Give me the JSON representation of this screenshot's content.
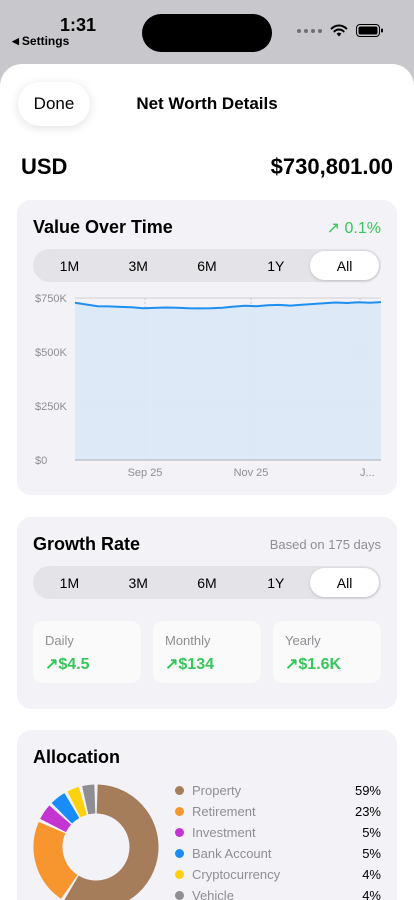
{
  "status_bar": {
    "time": "1:31",
    "back_app": "Settings"
  },
  "header": {
    "done_label": "Done",
    "title": "Net Worth Details"
  },
  "summary": {
    "currency": "USD",
    "total": "$730,801.00"
  },
  "value_over_time": {
    "title": "Value Over Time",
    "change": "0.1%",
    "ranges": [
      "1M",
      "3M",
      "6M",
      "1Y",
      "All"
    ],
    "selected_range": "All"
  },
  "chart_data": {
    "type": "area",
    "ytick_labels": [
      "$750K",
      "$500K",
      "$250K",
      "$0"
    ],
    "yticks": [
      750000,
      500000,
      250000,
      0
    ],
    "ylim": [
      0,
      750000
    ],
    "xtick_labels": [
      "Sep 25",
      "Nov 25",
      "J..."
    ],
    "grid": true,
    "line_color": "#1e8ff0",
    "fill_color": "#dbe8f6",
    "values": [
      728000,
      720000,
      712000,
      711000,
      709000,
      707000,
      703000,
      704000,
      706000,
      705000,
      703000,
      702000,
      703000,
      705000,
      710000,
      714000,
      712000,
      716000,
      718000,
      715000,
      719000,
      722000,
      726000,
      729000,
      727000,
      730000,
      728000,
      731000
    ]
  },
  "growth_rate": {
    "title": "Growth Rate",
    "based_on": "Based on 175 days",
    "ranges": [
      "1M",
      "3M",
      "6M",
      "1Y",
      "All"
    ],
    "selected_range": "All",
    "stats": [
      {
        "label": "Daily",
        "value": "$4.5"
      },
      {
        "label": "Monthly",
        "value": "$134"
      },
      {
        "label": "Yearly",
        "value": "$1.6K"
      }
    ]
  },
  "allocation": {
    "title": "Allocation",
    "items": [
      {
        "label": "Property",
        "percent_text": "59%",
        "value": 59,
        "color": "#a57d5b"
      },
      {
        "label": "Retirement",
        "percent_text": "23%",
        "value": 23,
        "color": "#f7962e"
      },
      {
        "label": "Investment",
        "percent_text": "5%",
        "value": 5,
        "color": "#c434d3"
      },
      {
        "label": "Bank Account",
        "percent_text": "5%",
        "value": 5,
        "color": "#1a8cf7"
      },
      {
        "label": "Cryptocurrency",
        "percent_text": "4%",
        "value": 4,
        "color": "#fcd20f"
      },
      {
        "label": "Vehicle",
        "percent_text": "4%",
        "value": 4,
        "color": "#8e8e93"
      }
    ]
  }
}
